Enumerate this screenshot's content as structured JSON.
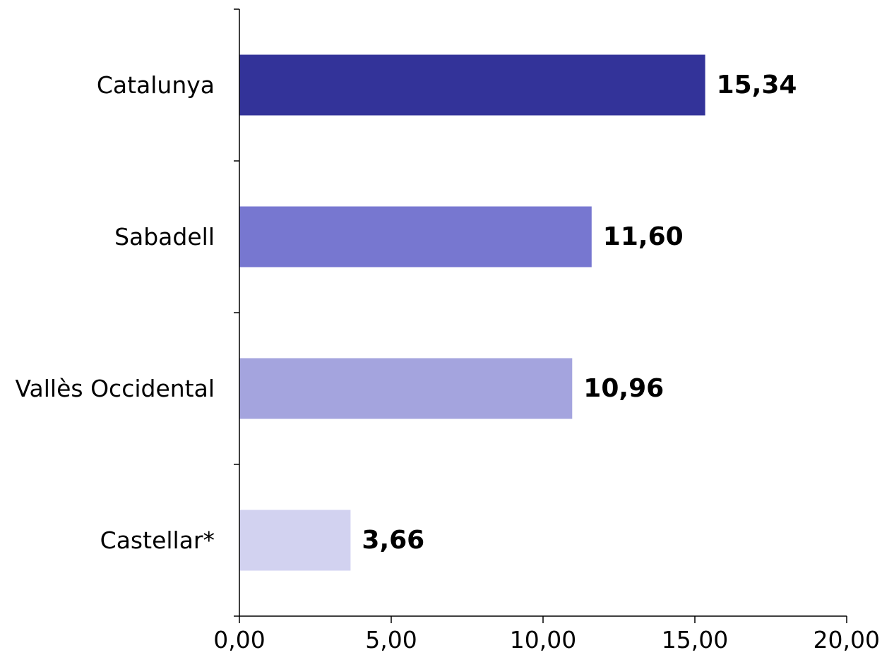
{
  "chart_data": {
    "type": "bar",
    "orientation": "horizontal",
    "title": "",
    "xlabel": "",
    "ylabel": "",
    "categories": [
      "Catalunya",
      "Sabadell",
      "Vallès Occidental",
      "Castellar*"
    ],
    "values": [
      15.34,
      11.6,
      10.96,
      3.66
    ],
    "value_labels": [
      "15,34",
      "11,60",
      "10,96",
      "3,66"
    ],
    "bar_colors": [
      "#333399",
      "#7777d0",
      "#a4a4de",
      "#d2d2f0"
    ],
    "xlim": [
      0,
      20
    ],
    "x_ticks": [
      0,
      5,
      10,
      15,
      20
    ],
    "x_tick_labels": [
      "0,00",
      "5,00",
      "10,00",
      "15,00",
      "20,00"
    ],
    "grid": false,
    "legend": "none"
  }
}
